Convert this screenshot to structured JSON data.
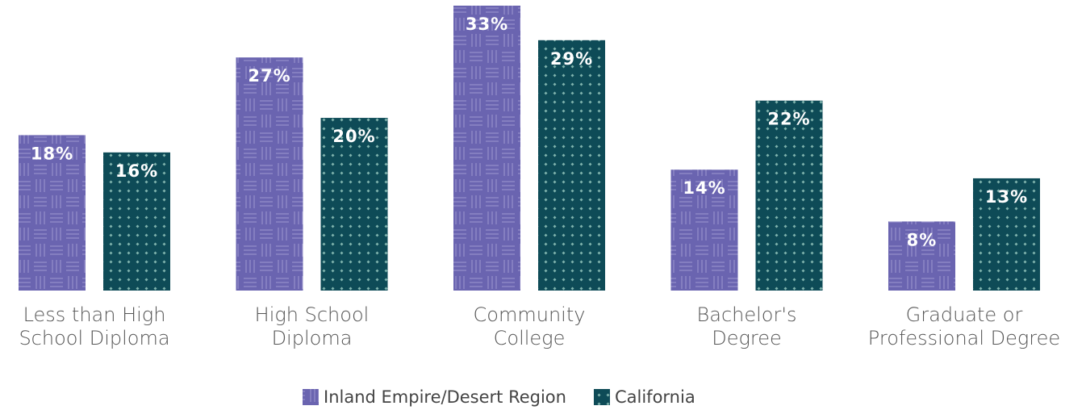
{
  "chart_data": {
    "type": "bar",
    "categories": [
      "Less than High School Diploma",
      "High School Diploma",
      "Community College",
      "Bachelor's Degree",
      "Graduate or Professional Degree"
    ],
    "series": [
      {
        "name": "Inland Empire/Desert Region",
        "color": "#6a64b0",
        "values": [
          18,
          27,
          33,
          14,
          8
        ],
        "value_labels": [
          "18%",
          "27%",
          "33%",
          "14%",
          "8%"
        ]
      },
      {
        "name": "California",
        "color": "#0e4b57",
        "values": [
          16,
          20,
          29,
          22,
          13
        ],
        "value_labels": [
          "16%",
          "20%",
          "29%",
          "22%",
          "13%"
        ]
      }
    ],
    "legend": "bottom"
  }
}
